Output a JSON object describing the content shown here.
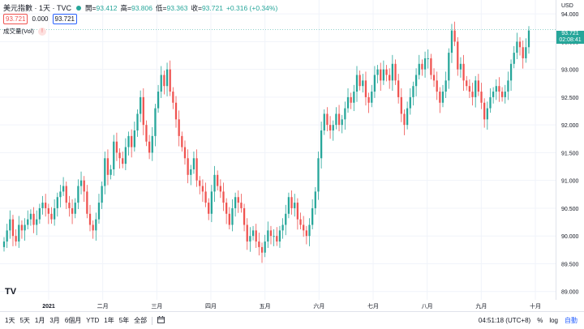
{
  "header": {
    "symbol": "美元指數 · 1天 · TVC",
    "ohlc": {
      "open_label": "開",
      "open": "93.412",
      "high_label": "高",
      "high": "93.806",
      "low_label": "低",
      "low": "93.363",
      "close_label": "收",
      "close": "93.721",
      "change": "+0.316 (+0.34%)"
    },
    "bid": "93.721",
    "spread": "0.000",
    "ask": "93.721",
    "volume_label": "成交量(Vol)",
    "warn_icon": "!"
  },
  "price_axis": {
    "currency": "USD",
    "last_price": "93.721",
    "countdown": "02:08:41"
  },
  "bottom_bar": {
    "ranges": [
      "1天",
      "5天",
      "1月",
      "3月",
      "6個月",
      "YTD",
      "1年",
      "5年",
      "全部"
    ],
    "time": "04:51:18 (UTC+8)",
    "percent": "%",
    "log": "log",
    "auto": "自動"
  },
  "colors": {
    "up": "#26a69a",
    "down": "#ef5350",
    "accent": "#2962ff"
  },
  "chart_data": {
    "type": "candlestick",
    "title": "美元指數",
    "y_ticks": [
      89.0,
      89.5,
      90.0,
      90.5,
      91.0,
      91.5,
      92.0,
      92.5,
      93.0,
      93.5,
      94.0
    ],
    "x_ticks": [
      "2021",
      "二月",
      "三月",
      "四月",
      "五月",
      "六月",
      "七月",
      "八月",
      "九月",
      "十月"
    ],
    "ylim": [
      88.85,
      94.25
    ],
    "last_close": 93.721,
    "closes": [
      89.9,
      90.1,
      90.3,
      90.0,
      89.9,
      90.2,
      90.1,
      90.2,
      90.3,
      90.4,
      90.2,
      90.3,
      90.5,
      90.6,
      90.5,
      90.4,
      90.3,
      90.5,
      90.7,
      90.8,
      90.9,
      90.6,
      90.5,
      90.4,
      90.6,
      90.9,
      91.0,
      90.8,
      90.4,
      90.2,
      90.1,
      90.3,
      90.6,
      90.9,
      91.4,
      91.1,
      91.2,
      91.7,
      91.5,
      91.4,
      91.3,
      91.6,
      91.8,
      91.6,
      91.9,
      92.2,
      92.5,
      92.0,
      91.7,
      91.5,
      91.8,
      92.3,
      92.6,
      92.9,
      92.7,
      93.0,
      92.6,
      92.4,
      92.1,
      91.8,
      91.6,
      91.4,
      91.1,
      91.2,
      91.4,
      91.0,
      90.9,
      90.8,
      90.6,
      90.4,
      90.8,
      91.1,
      90.9,
      90.8,
      90.6,
      90.4,
      90.2,
      90.5,
      90.7,
      90.6,
      90.5,
      90.2,
      89.9,
      90.0,
      90.1,
      89.9,
      89.8,
      89.7,
      89.9,
      90.1,
      90.0,
      90.0,
      89.9,
      90.1,
      90.2,
      90.4,
      90.7,
      90.5,
      90.6,
      90.3,
      90.2,
      90.1,
      90.0,
      90.2,
      90.5,
      90.8,
      91.4,
      91.9,
      92.2,
      92.0,
      91.9,
      92.0,
      92.2,
      92.0,
      92.1,
      92.3,
      92.5,
      92.4,
      92.6,
      92.9,
      92.7,
      92.8,
      92.5,
      92.4,
      92.6,
      92.9,
      93.0,
      92.8,
      93.0,
      92.9,
      92.8,
      93.1,
      92.8,
      92.5,
      92.2,
      92.0,
      92.3,
      92.5,
      92.7,
      92.9,
      93.1,
      93.0,
      93.2,
      93.2,
      92.9,
      92.8,
      92.6,
      92.4,
      92.6,
      92.8,
      93.3,
      93.7,
      93.5,
      93.0,
      93.1,
      92.8,
      92.7,
      92.6,
      92.5,
      92.8,
      92.6,
      92.4,
      92.1,
      92.3,
      92.5,
      92.6,
      92.7,
      92.6,
      92.5,
      92.6,
      92.8,
      93.1,
      93.3,
      93.5,
      93.4,
      93.2,
      93.4,
      93.7
    ]
  }
}
